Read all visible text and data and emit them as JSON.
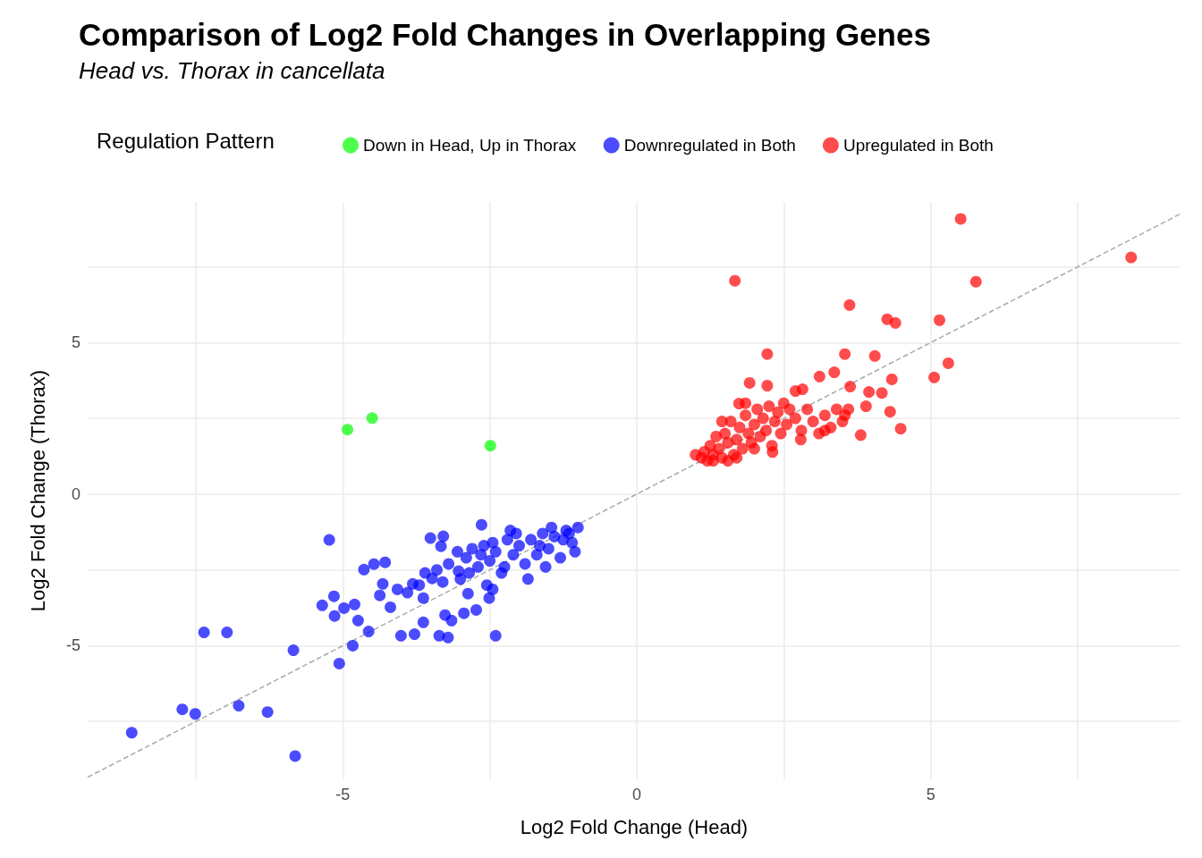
{
  "chart_data": {
    "type": "scatter",
    "title": "Comparison of Log2 Fold Changes in Overlapping Genes",
    "subtitle": "Head vs. Thorax in cancellata",
    "xlabel": "Log2 Fold Change (Head)",
    "ylabel": "Log2 Fold Change (Thorax)",
    "legend_title": "Regulation Pattern",
    "legend": "top",
    "grid": true,
    "marker": "circle",
    "xlim": [
      -9.34,
      9.25
    ],
    "ylim": [
      -9.41,
      9.64
    ],
    "xticks": [
      {
        "value": -7.5,
        "label": null
      },
      -5,
      {
        "value": -2.5,
        "label": null
      },
      0,
      {
        "value": 2.5,
        "label": null
      },
      5,
      {
        "value": 7.5,
        "label": null
      }
    ],
    "yticks": [
      {
        "value": -7.5,
        "label": null
      },
      -5,
      {
        "value": -2.5,
        "label": null
      },
      0,
      {
        "value": 2.5,
        "label": null
      },
      5,
      {
        "value": 7.5,
        "label": null
      }
    ],
    "series": [
      {
        "name": "Down in Head, Up in Thorax",
        "color": "#00ff00",
        "x": [
          -4.92,
          -4.5,
          -2.49
        ],
        "values": [
          2.13,
          2.51,
          1.6
        ]
      },
      {
        "name": "Downregulated in Both",
        "color": "#0000ff",
        "x": [
          -8.59,
          -7.73,
          -7.51,
          -6.77,
          -6.28,
          -5.81,
          -5.84,
          -7.36,
          -6.97,
          -5.06,
          -4.83,
          -5.23,
          -5.35,
          -5.15,
          -5.14,
          -4.98,
          -4.8,
          -4.74,
          -4.56,
          -4.64,
          -4.47,
          -4.28,
          -4.37,
          -4.32,
          -4.19,
          -4.07,
          -4.01,
          -3.9,
          -3.81,
          -3.78,
          -3.63,
          -3.63,
          -3.48,
          -3.36,
          -3.26,
          -3.21,
          -3.29,
          -3.51,
          -3.33,
          -3.15,
          -3.03,
          -2.94,
          -2.87,
          -2.73,
          -2.64,
          -2.4,
          -2.51,
          -2.45,
          -3.4,
          -3.2,
          -3.0,
          -2.9,
          -2.8,
          -2.7,
          -2.6,
          -2.5,
          -2.4,
          -2.3,
          -2.2,
          -2.1,
          -2.0,
          -1.9,
          -1.8,
          -1.7,
          -1.6,
          -1.5,
          -1.4,
          -1.3,
          -1.2,
          -1.1,
          -1.0,
          -1.05,
          -1.25,
          -1.45,
          -1.65,
          -1.85,
          -2.05,
          -2.25,
          -2.45,
          -2.65,
          -2.85,
          -3.05,
          -3.3,
          -3.6,
          -3.7,
          -2.55,
          -1.55,
          -1.15,
          -2.15
        ],
        "values": [
          -7.87,
          -7.1,
          -7.25,
          -6.98,
          -7.19,
          -8.64,
          -5.15,
          -4.56,
          -4.56,
          -5.59,
          -5.0,
          -1.51,
          -3.67,
          -3.37,
          -4.02,
          -3.76,
          -3.64,
          -4.17,
          -4.53,
          -2.49,
          -2.31,
          -2.25,
          -3.34,
          -2.96,
          -3.73,
          -3.14,
          -4.67,
          -3.25,
          -2.96,
          -4.62,
          -4.23,
          -3.43,
          -2.78,
          -4.67,
          -3.99,
          -4.73,
          -1.39,
          -1.45,
          -1.72,
          -4.17,
          -2.54,
          -3.93,
          -3.28,
          -3.82,
          -1.01,
          -4.67,
          -3.43,
          -3.14,
          -2.5,
          -2.3,
          -2.8,
          -2.1,
          -1.8,
          -2.4,
          -1.7,
          -2.2,
          -1.9,
          -2.6,
          -1.5,
          -2.0,
          -1.7,
          -2.3,
          -1.5,
          -2.0,
          -1.3,
          -1.8,
          -1.4,
          -2.1,
          -1.2,
          -1.6,
          -1.1,
          -1.9,
          -1.5,
          -1.1,
          -1.7,
          -2.8,
          -1.3,
          -2.4,
          -1.6,
          -2.0,
          -2.6,
          -1.9,
          -2.9,
          -2.6,
          -3.0,
          -3.0,
          -2.4,
          -1.3,
          -1.2
        ]
      },
      {
        "name": "Upregulated in Both",
        "color": "#ff0000",
        "x": [
          5.51,
          8.41,
          5.77,
          1.67,
          3.62,
          4.26,
          4.4,
          5.15,
          5.3,
          5.06,
          2.22,
          3.54,
          4.05,
          3.36,
          3.11,
          4.34,
          3.63,
          3.95,
          4.17,
          2.22,
          1.92,
          4.31,
          4.49,
          3.81,
          3.9,
          3.54,
          2.82,
          2.79,
          2.31,
          1.74,
          1.1,
          1.15,
          1.2,
          1.25,
          1.3,
          1.35,
          1.4,
          1.45,
          1.5,
          1.55,
          1.6,
          1.65,
          1.7,
          1.75,
          1.8,
          1.85,
          1.9,
          1.95,
          2.0,
          2.05,
          2.1,
          2.15,
          2.2,
          2.25,
          2.3,
          2.35,
          2.4,
          2.45,
          2.5,
          2.55,
          2.6,
          2.7,
          2.8,
          2.9,
          3.0,
          3.1,
          3.2,
          3.3,
          3.4,
          3.5,
          3.6,
          1.0,
          1.3,
          1.55,
          1.7,
          2.0,
          1.45,
          1.85,
          2.7,
          3.2
        ],
        "values": [
          9.08,
          7.81,
          7.01,
          7.04,
          6.24,
          5.77,
          5.65,
          5.74,
          4.32,
          3.85,
          4.62,
          4.62,
          4.56,
          4.02,
          3.88,
          3.79,
          3.55,
          3.37,
          3.34,
          3.58,
          3.67,
          2.72,
          2.16,
          1.95,
          2.9,
          2.6,
          3.46,
          1.8,
          1.39,
          2.99,
          1.2,
          1.4,
          1.1,
          1.6,
          1.3,
          1.9,
          1.5,
          1.2,
          2.0,
          1.7,
          2.4,
          1.3,
          1.8,
          2.2,
          1.5,
          2.6,
          2.0,
          1.7,
          2.3,
          2.8,
          1.9,
          2.5,
          2.1,
          2.9,
          1.6,
          2.4,
          2.7,
          2.0,
          3.0,
          2.3,
          2.8,
          2.5,
          2.1,
          2.8,
          2.4,
          2.0,
          2.6,
          2.2,
          2.8,
          2.4,
          2.8,
          1.3,
          1.1,
          1.1,
          1.2,
          1.5,
          2.4,
          3.0,
          3.4,
          2.1
        ]
      },
      {
        "type": "line",
        "color": "#aaaaaa",
        "line_style": "dashed",
        "marker": "none",
        "x": [
          -9.34,
          9.25
        ],
        "values": [
          -9.34,
          9.25
        ]
      }
    ]
  }
}
